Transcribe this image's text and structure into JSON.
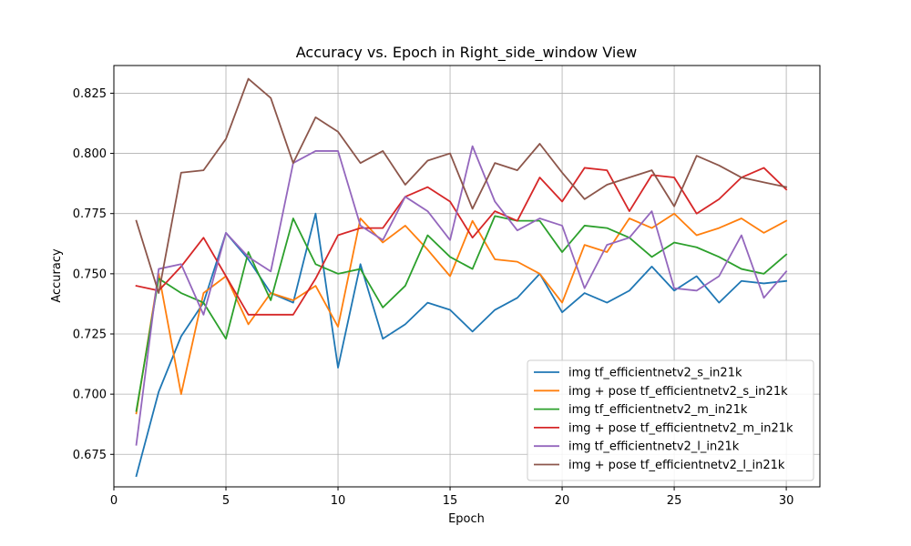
{
  "chart_data": {
    "type": "line",
    "title": "Accuracy vs. Epoch in Right_side_window View",
    "xlabel": "Epoch",
    "ylabel": "Accuracy",
    "xlim": [
      0,
      31.5
    ],
    "ylim": [
      0.6615,
      0.8365
    ],
    "xticks": [
      0,
      5,
      10,
      15,
      20,
      25,
      30
    ],
    "yticks": [
      0.675,
      0.7,
      0.725,
      0.75,
      0.775,
      0.8,
      0.825
    ],
    "ytick_labels": [
      "0.675",
      "0.700",
      "0.725",
      "0.750",
      "0.775",
      "0.800",
      "0.825"
    ],
    "grid": true,
    "legend_position": "lower-right",
    "x": [
      1,
      2,
      3,
      4,
      5,
      6,
      7,
      8,
      9,
      10,
      11,
      12,
      13,
      14,
      15,
      16,
      17,
      18,
      19,
      20,
      21,
      22,
      23,
      24,
      25,
      26,
      27,
      28,
      29,
      30
    ],
    "series": [
      {
        "name": "img tf_efficientnetv2_s_in21k",
        "color": "#1f77b4",
        "values": [
          0.666,
          0.701,
          0.724,
          0.738,
          0.767,
          0.756,
          0.742,
          0.738,
          0.775,
          0.711,
          0.754,
          0.723,
          0.729,
          0.738,
          0.735,
          0.726,
          0.735,
          0.74,
          0.75,
          0.734,
          0.742,
          0.738,
          0.743,
          0.753,
          0.743,
          0.749,
          0.738,
          0.747,
          0.746,
          0.747
        ]
      },
      {
        "name": "img + pose tf_efficientnetv2_s_in21k",
        "color": "#ff7f0e",
        "values": [
          0.692,
          0.75,
          0.7,
          0.742,
          0.749,
          0.729,
          0.742,
          0.739,
          0.745,
          0.728,
          0.773,
          0.763,
          0.77,
          0.76,
          0.749,
          0.772,
          0.756,
          0.755,
          0.75,
          0.738,
          0.762,
          0.759,
          0.773,
          0.769,
          0.775,
          0.766,
          0.769,
          0.773,
          0.767,
          0.772
        ]
      },
      {
        "name": "img tf_efficientnetv2_m_in21k",
        "color": "#2ca02c",
        "values": [
          0.693,
          0.748,
          0.742,
          0.738,
          0.723,
          0.759,
          0.739,
          0.773,
          0.754,
          0.75,
          0.752,
          0.736,
          0.745,
          0.766,
          0.757,
          0.752,
          0.774,
          0.772,
          0.772,
          0.759,
          0.77,
          0.769,
          0.765,
          0.757,
          0.763,
          0.761,
          0.757,
          0.752,
          0.75,
          0.758
        ]
      },
      {
        "name": "img + pose tf_efficientnetv2_m_in21k",
        "color": "#d62728",
        "values": [
          0.745,
          0.743,
          0.753,
          0.765,
          0.749,
          0.733,
          0.733,
          0.733,
          0.748,
          0.766,
          0.769,
          0.769,
          0.782,
          0.786,
          0.78,
          0.765,
          0.776,
          0.772,
          0.79,
          0.78,
          0.794,
          0.793,
          0.776,
          0.791,
          0.79,
          0.775,
          0.781,
          0.79,
          0.794,
          0.785
        ]
      },
      {
        "name": "img tf_efficientnetv2_l_in21k",
        "color": "#9467bd",
        "values": [
          0.679,
          0.752,
          0.754,
          0.733,
          0.767,
          0.757,
          0.751,
          0.796,
          0.801,
          0.801,
          0.77,
          0.764,
          0.782,
          0.776,
          0.764,
          0.803,
          0.78,
          0.768,
          0.773,
          0.77,
          0.744,
          0.762,
          0.765,
          0.776,
          0.744,
          0.743,
          0.749,
          0.766,
          0.74,
          0.751
        ]
      },
      {
        "name": "img + pose tf_efficientnetv2_l_in21k",
        "color": "#8c564b",
        "values": [
          0.772,
          0.742,
          0.792,
          0.793,
          0.806,
          0.831,
          0.823,
          0.796,
          0.815,
          0.809,
          0.796,
          0.801,
          0.787,
          0.797,
          0.8,
          0.777,
          0.796,
          0.793,
          0.804,
          0.792,
          0.781,
          0.787,
          0.79,
          0.793,
          0.778,
          0.799,
          0.795,
          0.79,
          0.788,
          0.786
        ]
      }
    ]
  }
}
